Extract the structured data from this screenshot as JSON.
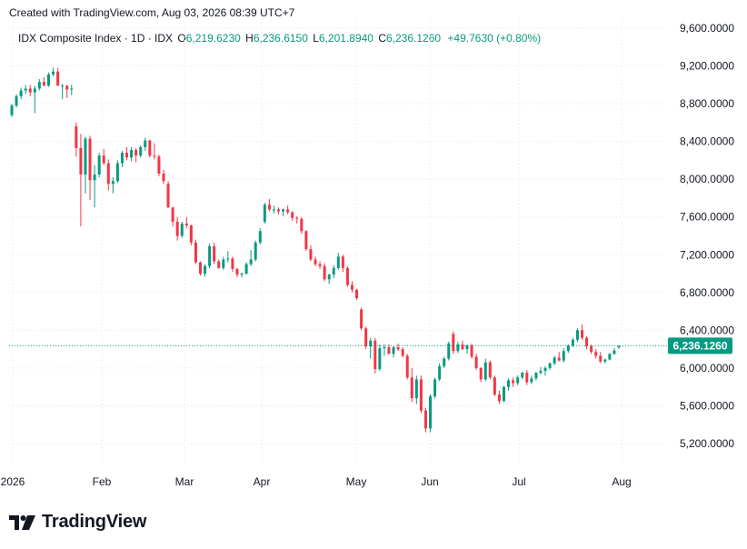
{
  "header": {
    "created_text": "Created with TradingView.com, Aug 03, 2026 08:39 UTC+7"
  },
  "legend": {
    "title": "IDX Composite Index · 1D · IDX",
    "open_label": "O",
    "open_value": "6,219.6230",
    "high_label": "H",
    "high_value": "6,236.6150",
    "low_label": "L",
    "low_value": "6,201.8940",
    "close_label": "C",
    "close_value": "6,236.1260",
    "change_value": "+49.7630 (+0.80%)"
  },
  "logo": {
    "text": "TradingView",
    "icon": "tradingview-logo-icon"
  },
  "colors": {
    "up": "#089981",
    "down": "#f23645",
    "grid": "#e0e3eb",
    "text": "#131722",
    "price_tag": "#089981"
  },
  "chart_data": {
    "type": "candlestick",
    "title": "IDX Composite Index · 1D · IDX",
    "y_axis_labels": [
      "9,600.0000",
      "9,200.0000",
      "8,800.0000",
      "8,400.0000",
      "8,000.0000",
      "7,600.0000",
      "7,200.0000",
      "6,800.0000",
      "6,400.0000",
      "6,000.0000",
      "5,600.0000",
      "5,200.0000"
    ],
    "y_ticks": [
      9600,
      9200,
      8800,
      8400,
      8000,
      7600,
      7200,
      6800,
      6400,
      6000,
      5600,
      5200
    ],
    "ylim": [
      5050,
      9650
    ],
    "x_axis_labels": [
      "2026",
      "Feb",
      "Mar",
      "Apr",
      "May",
      "Jun",
      "Jul",
      "Aug"
    ],
    "grid": true,
    "last_price": 6236.126,
    "last_price_label": "6,236.1260",
    "candles": [
      [
        8680,
        8800,
        8660,
        8780
      ],
      [
        8780,
        8900,
        8760,
        8880
      ],
      [
        8880,
        8970,
        8850,
        8940
      ],
      [
        8940,
        9000,
        8900,
        8960
      ],
      [
        8960,
        9000,
        8880,
        8920
      ],
      [
        8920,
        8990,
        8700,
        8960
      ],
      [
        8960,
        9060,
        8940,
        9030
      ],
      [
        9030,
        9080,
        8990,
        8990
      ],
      [
        8990,
        9130,
        8980,
        9110
      ],
      [
        9110,
        9180,
        9090,
        9140
      ],
      [
        9140,
        9180,
        9000,
        8990
      ],
      [
        8990,
        9010,
        8850,
        8990
      ],
      [
        8990,
        9000,
        8860,
        8950
      ],
      [
        8950,
        9000,
        8890,
        8960
      ],
      [
        8560,
        8600,
        8240,
        8330
      ],
      [
        8330,
        8480,
        7500,
        8050
      ],
      [
        8050,
        8450,
        7850,
        8430
      ],
      [
        8430,
        8460,
        7780,
        7990
      ],
      [
        7990,
        8150,
        7700,
        8050
      ],
      [
        8050,
        8280,
        8020,
        8250
      ],
      [
        8250,
        8320,
        8150,
        8170
      ],
      [
        8170,
        8210,
        7880,
        7950
      ],
      [
        7950,
        8020,
        7850,
        7980
      ],
      [
        7980,
        8200,
        7960,
        8170
      ],
      [
        8170,
        8300,
        8130,
        8280
      ],
      [
        8280,
        8340,
        8200,
        8230
      ],
      [
        8230,
        8340,
        8190,
        8310
      ],
      [
        8310,
        8330,
        8180,
        8250
      ],
      [
        8250,
        8360,
        8230,
        8340
      ],
      [
        8340,
        8440,
        8300,
        8410
      ],
      [
        8410,
        8420,
        8230,
        8250
      ],
      [
        8250,
        8380,
        8210,
        8240
      ],
      [
        8240,
        8260,
        8030,
        8060
      ],
      [
        8060,
        8100,
        7950,
        7980
      ],
      [
        7950,
        7980,
        7700,
        7700
      ],
      [
        7700,
        7710,
        7500,
        7550
      ],
      [
        7550,
        7600,
        7350,
        7400
      ],
      [
        7400,
        7550,
        7380,
        7530
      ],
      [
        7530,
        7600,
        7480,
        7510
      ],
      [
        7510,
        7520,
        7300,
        7330
      ],
      [
        7330,
        7360,
        7100,
        7120
      ],
      [
        7120,
        7130,
        6980,
        7000
      ],
      [
        7000,
        7100,
        6970,
        7080
      ],
      [
        7080,
        7320,
        7060,
        7290
      ],
      [
        7290,
        7330,
        7100,
        7130
      ],
      [
        7130,
        7150,
        7050,
        7060
      ],
      [
        7060,
        7180,
        7040,
        7150
      ],
      [
        7150,
        7240,
        7120,
        7160
      ],
      [
        7160,
        7180,
        7020,
        7050
      ],
      [
        7050,
        7060,
        6960,
        6990
      ],
      [
        6990,
        7010,
        6960,
        7000
      ],
      [
        7000,
        7120,
        6990,
        7100
      ],
      [
        7100,
        7250,
        7080,
        7150
      ],
      [
        7150,
        7350,
        7130,
        7330
      ],
      [
        7330,
        7480,
        7310,
        7450
      ],
      [
        7550,
        7750,
        7530,
        7730
      ],
      [
        7730,
        7790,
        7660,
        7680
      ],
      [
        7680,
        7720,
        7640,
        7680
      ],
      [
        7680,
        7700,
        7630,
        7660
      ],
      [
        7660,
        7690,
        7610,
        7680
      ],
      [
        7680,
        7720,
        7630,
        7650
      ],
      [
        7650,
        7660,
        7560,
        7590
      ],
      [
        7590,
        7610,
        7530,
        7580
      ],
      [
        7580,
        7600,
        7420,
        7450
      ],
      [
        7450,
        7460,
        7240,
        7260
      ],
      [
        7260,
        7300,
        7130,
        7150
      ],
      [
        7150,
        7180,
        7080,
        7100
      ],
      [
        7100,
        7130,
        7050,
        7080
      ],
      [
        7080,
        7110,
        6920,
        6940
      ],
      [
        6940,
        7000,
        6890,
        6990
      ],
      [
        6990,
        7090,
        6950,
        7060
      ],
      [
        7060,
        7220,
        7040,
        7180
      ],
      [
        7180,
        7200,
        7020,
        7060
      ],
      [
        7060,
        7080,
        6860,
        6880
      ],
      [
        6880,
        6920,
        6800,
        6830
      ],
      [
        6830,
        6840,
        6720,
        6740
      ],
      [
        6620,
        6640,
        6400,
        6420
      ],
      [
        6420,
        6440,
        6200,
        6230
      ],
      [
        6230,
        6320,
        6100,
        6290
      ],
      [
        6290,
        6320,
        5940,
        5990
      ],
      [
        5990,
        6250,
        5970,
        6210
      ],
      [
        6210,
        6250,
        6130,
        6220
      ],
      [
        6220,
        6250,
        6150,
        6150
      ],
      [
        6150,
        6230,
        6110,
        6220
      ],
      [
        6220,
        6260,
        6180,
        6200
      ],
      [
        6200,
        6220,
        6110,
        6130
      ],
      [
        6130,
        6150,
        5880,
        5900
      ],
      [
        5900,
        6000,
        5640,
        5680
      ],
      [
        5680,
        5920,
        5620,
        5880
      ],
      [
        5880,
        5920,
        5520,
        5550
      ],
      [
        5550,
        5580,
        5320,
        5360
      ],
      [
        5360,
        5720,
        5320,
        5700
      ],
      [
        5700,
        5900,
        5680,
        5880
      ],
      [
        5880,
        6050,
        5860,
        6020
      ],
      [
        6020,
        6120,
        6000,
        6100
      ],
      [
        6100,
        6280,
        6080,
        6260
      ],
      [
        6360,
        6390,
        6150,
        6180
      ],
      [
        6180,
        6280,
        6160,
        6250
      ],
      [
        6250,
        6290,
        6190,
        6200
      ],
      [
        6200,
        6250,
        6150,
        6240
      ],
      [
        6240,
        6260,
        6100,
        6120
      ],
      [
        6120,
        6150,
        5980,
        6000
      ],
      [
        6000,
        6010,
        5850,
        5880
      ],
      [
        5880,
        6100,
        5860,
        6060
      ],
      [
        6060,
        6080,
        5880,
        5900
      ],
      [
        5900,
        5920,
        5700,
        5720
      ],
      [
        5720,
        5760,
        5620,
        5650
      ],
      [
        5650,
        5810,
        5640,
        5800
      ],
      [
        5800,
        5890,
        5760,
        5870
      ],
      [
        5870,
        5900,
        5800,
        5840
      ],
      [
        5840,
        5920,
        5820,
        5900
      ],
      [
        5900,
        5960,
        5880,
        5950
      ],
      [
        5950,
        5980,
        5820,
        5850
      ],
      [
        5850,
        5920,
        5830,
        5890
      ],
      [
        5890,
        5960,
        5870,
        5950
      ],
      [
        5950,
        6010,
        5930,
        5970
      ],
      [
        5970,
        6020,
        5920,
        6000
      ],
      [
        6000,
        6060,
        5980,
        6050
      ],
      [
        6050,
        6130,
        6030,
        6110
      ],
      [
        6110,
        6170,
        6070,
        6080
      ],
      [
        6080,
        6210,
        6060,
        6180
      ],
      [
        6180,
        6250,
        6160,
        6240
      ],
      [
        6240,
        6320,
        6220,
        6300
      ],
      [
        6300,
        6420,
        6280,
        6400
      ],
      [
        6400,
        6460,
        6300,
        6320
      ],
      [
        6320,
        6340,
        6200,
        6230
      ],
      [
        6230,
        6250,
        6150,
        6170
      ],
      [
        6170,
        6200,
        6100,
        6130
      ],
      [
        6130,
        6170,
        6050,
        6070
      ],
      [
        6070,
        6100,
        6050,
        6090
      ],
      [
        6090,
        6160,
        6080,
        6150
      ],
      [
        6150,
        6210,
        6140,
        6186.3
      ],
      [
        6219.623,
        6236.615,
        6201.894,
        6236.126
      ]
    ]
  }
}
